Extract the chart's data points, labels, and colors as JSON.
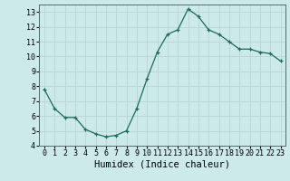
{
  "x": [
    0,
    1,
    2,
    3,
    4,
    5,
    6,
    7,
    8,
    9,
    10,
    11,
    12,
    13,
    14,
    15,
    16,
    17,
    18,
    19,
    20,
    21,
    22,
    23
  ],
  "y": [
    7.8,
    6.5,
    5.9,
    5.9,
    5.1,
    4.8,
    4.6,
    4.7,
    5.0,
    6.5,
    8.5,
    10.3,
    11.5,
    11.8,
    13.2,
    12.7,
    11.8,
    11.5,
    11.0,
    10.5,
    10.5,
    10.3,
    10.2,
    9.7
  ],
  "xlabel": "Humidex (Indice chaleur)",
  "ylim": [
    4,
    13.5
  ],
  "xlim": [
    -0.5,
    23.5
  ],
  "yticks": [
    4,
    5,
    6,
    7,
    8,
    9,
    10,
    11,
    12,
    13
  ],
  "xticks": [
    0,
    1,
    2,
    3,
    4,
    5,
    6,
    7,
    8,
    9,
    10,
    11,
    12,
    13,
    14,
    15,
    16,
    17,
    18,
    19,
    20,
    21,
    22,
    23
  ],
  "line_color": "#1a6b5a",
  "marker": "+",
  "marker_size": 3,
  "bg_color": "#cceaea",
  "grid_color": "#b8d4d4",
  "tick_label_fontsize": 6,
  "xlabel_fontsize": 7.5,
  "xlabel_font": "monospace"
}
